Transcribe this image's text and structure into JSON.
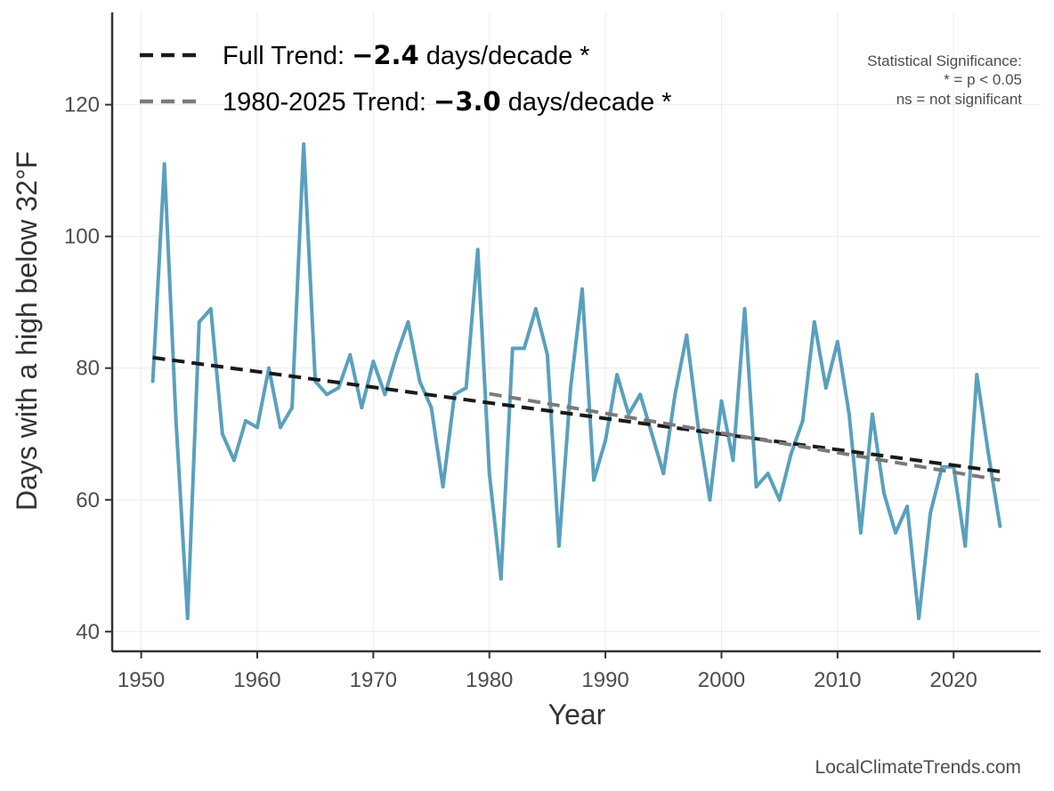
{
  "chart_data": {
    "type": "line",
    "xlabel": "Year",
    "ylabel": "Days with a high below 32°F",
    "xlim": [
      1947.5,
      2027.5
    ],
    "ylim": [
      37,
      134
    ],
    "x_ticks": [
      1950,
      1960,
      1970,
      1980,
      1990,
      2000,
      2010,
      2020
    ],
    "y_ticks": [
      40,
      60,
      80,
      100,
      120
    ],
    "grid": true,
    "series": [
      {
        "name": "Days with a high below 32°F",
        "color": "#5aa0bd",
        "x": [
          1951,
          1952,
          1953,
          1954,
          1955,
          1956,
          1957,
          1958,
          1959,
          1960,
          1961,
          1962,
          1963,
          1964,
          1965,
          1966,
          1967,
          1968,
          1969,
          1970,
          1971,
          1972,
          1973,
          1974,
          1975,
          1976,
          1977,
          1978,
          1979,
          1980,
          1981,
          1982,
          1983,
          1984,
          1985,
          1986,
          1987,
          1988,
          1989,
          1990,
          1991,
          1992,
          1993,
          1994,
          1995,
          1996,
          1997,
          1998,
          1999,
          2000,
          2001,
          2002,
          2003,
          2004,
          2005,
          2006,
          2007,
          2008,
          2009,
          2010,
          2011,
          2012,
          2013,
          2014,
          2015,
          2016,
          2017,
          2018,
          2019,
          2020,
          2021,
          2022,
          2023,
          2024
        ],
        "values": [
          78,
          111,
          72,
          42,
          87,
          89,
          70,
          66,
          72,
          71,
          80,
          71,
          74,
          114,
          78,
          76,
          77,
          82,
          74,
          81,
          76,
          82,
          87,
          78,
          74,
          62,
          76,
          77,
          98,
          64,
          48,
          83,
          83,
          89,
          82,
          53,
          77,
          92,
          63,
          69,
          79,
          73,
          76,
          70,
          64,
          76,
          85,
          71,
          60,
          75,
          66,
          89,
          62,
          64,
          60,
          67,
          72,
          87,
          77,
          84,
          73,
          55,
          73,
          61,
          55,
          59,
          42,
          58,
          65,
          65,
          53,
          79,
          67,
          56
        ]
      }
    ],
    "trends": [
      {
        "name": "Full Trend",
        "x": [
          1951,
          2024
        ],
        "values": [
          81.6,
          64.3
        ],
        "color": "#1a1a1a",
        "legend_prefix": "Full Trend: ",
        "legend_value": "−2.4",
        "legend_suffix": " days/decade *"
      },
      {
        "name": "1980-2025 Trend",
        "x": [
          1980,
          2024
        ],
        "values": [
          76.1,
          63.0
        ],
        "color": "#7a7a7a",
        "legend_prefix": "1980-2025 Trend: ",
        "legend_value": "−3.0",
        "legend_suffix": " days/decade *"
      }
    ],
    "significance_note": [
      "Statistical Significance:",
      "* = p < 0.05",
      "ns = not significant"
    ],
    "credit": "LocalClimateTrends.com"
  }
}
